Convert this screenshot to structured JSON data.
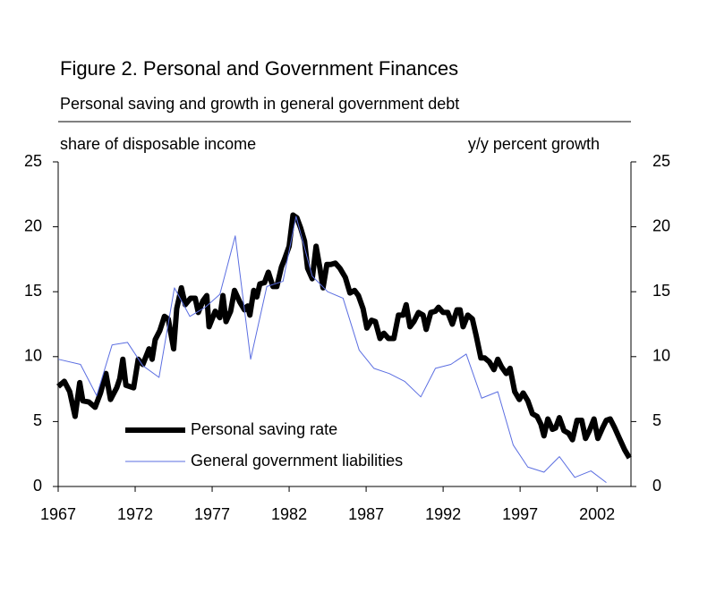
{
  "chart_data": {
    "type": "line",
    "title": "Figure 2. Personal and Government Finances",
    "subtitle": "Personal saving and growth in general government debt",
    "y_label": "share of disposable income",
    "y2_label": "y/y percent growth",
    "xlim": [
      1967,
      2004.2
    ],
    "xticks": [
      1967,
      1972,
      1977,
      1982,
      1987,
      1992,
      1997,
      2002
    ],
    "ylim": [
      0,
      25
    ],
    "yticks": [
      0,
      5,
      10,
      15,
      20,
      25
    ],
    "y2lim": [
      0,
      25
    ],
    "y2ticks": [
      0,
      5,
      10,
      15,
      20,
      25
    ],
    "legend": "lower left",
    "series": [
      {
        "name": "Personal saving rate",
        "color": "#000000",
        "x": [
          1967,
          1967.4,
          1967.75,
          1968.1,
          1968.4,
          1968.6,
          1969.0,
          1969.4,
          1969.75,
          1970.1,
          1970.4,
          1970.8,
          1971.0,
          1971.2,
          1971.4,
          1971.9,
          1972.2,
          1972.5,
          1972.9,
          1973.1,
          1973.3,
          1973.6,
          1973.9,
          1974.15,
          1974.5,
          1974.7,
          1975.0,
          1975.25,
          1975.6,
          1975.9,
          1976.1,
          1976.4,
          1976.65,
          1976.8,
          1977.2,
          1977.5,
          1977.7,
          1977.9,
          1978.2,
          1978.45,
          1978.8,
          1979.1,
          1979.3,
          1979.45,
          1979.7,
          1979.9,
          1980.1,
          1980.4,
          1980.65,
          1980.95,
          1981.2,
          1981.5,
          1981.7,
          1982.0,
          1982.25,
          1982.5,
          1982.75,
          1983.0,
          1983.2,
          1983.5,
          1983.75,
          1984.0,
          1984.2,
          1984.45,
          1984.7,
          1985.0,
          1985.3,
          1985.65,
          1985.95,
          1986.25,
          1986.5,
          1986.8,
          1987.05,
          1987.35,
          1987.6,
          1987.9,
          1988.15,
          1988.45,
          1988.8,
          1989.1,
          1989.4,
          1989.6,
          1989.85,
          1990.1,
          1990.4,
          1990.7,
          1990.9,
          1991.2,
          1991.5,
          1991.7,
          1992.0,
          1992.3,
          1992.6,
          1992.9,
          1993.1,
          1993.3,
          1993.6,
          1993.9,
          1994.15,
          1994.45,
          1994.7,
          1995.0,
          1995.3,
          1995.55,
          1995.8,
          1996.1,
          1996.35,
          1996.65,
          1996.95,
          1997.2,
          1997.5,
          1997.8,
          1998.1,
          1998.35,
          1998.55,
          1998.8,
          1999.1,
          1999.3,
          1999.55,
          1999.85,
          2000.15,
          2000.4,
          2000.7,
          2001.0,
          2001.25,
          2001.5,
          2001.8,
          2002.05,
          2002.35,
          2002.6,
          2002.85,
          2003.15,
          2003.45,
          2003.8,
          2004.1
        ],
        "values": [
          7.7,
          8.1,
          7.3,
          5.4,
          8.0,
          6.6,
          6.5,
          6.1,
          7.2,
          8.7,
          6.7,
          7.6,
          8.3,
          9.8,
          7.8,
          7.6,
          9.8,
          9.4,
          10.6,
          9.8,
          11.3,
          12.0,
          13.1,
          12.9,
          10.6,
          13.7,
          15.3,
          14.0,
          14.5,
          14.5,
          13.4,
          14.3,
          14.7,
          12.3,
          13.5,
          13.0,
          14.7,
          12.7,
          13.5,
          15.1,
          14.2,
          13.6,
          13.9,
          13.2,
          15.1,
          14.6,
          15.6,
          15.7,
          16.5,
          15.4,
          15.4,
          16.9,
          17.5,
          18.5,
          20.9,
          20.7,
          19.9,
          18.9,
          16.8,
          16.0,
          18.5,
          16.8,
          15.3,
          17.1,
          17.1,
          17.2,
          16.8,
          16.1,
          14.9,
          15.1,
          14.7,
          13.7,
          12.2,
          12.8,
          12.7,
          11.4,
          11.8,
          11.4,
          11.4,
          13.2,
          13.2,
          14.0,
          12.3,
          12.7,
          13.4,
          13.2,
          12.1,
          13.4,
          13.5,
          13.8,
          13.4,
          13.4,
          12.5,
          13.6,
          13.6,
          12.3,
          13.2,
          12.9,
          11.6,
          9.9,
          9.9,
          9.6,
          9.0,
          9.8,
          9.2,
          8.7,
          9.1,
          7.3,
          6.7,
          7.2,
          6.6,
          5.6,
          5.4,
          4.8,
          3.9,
          5.2,
          4.4,
          4.5,
          5.3,
          4.3,
          4.1,
          3.6,
          5.1,
          5.1,
          3.7,
          4.3,
          5.2,
          3.7,
          4.5,
          5.1,
          5.2,
          4.5,
          3.7,
          2.8,
          2.2
        ]
      },
      {
        "name": "General government liabilities",
        "color": "#5b6ee1",
        "axis": "y2",
        "x": [
          1967,
          1968.45,
          1969.5,
          1970.5,
          1971.5,
          1972.5,
          1973.55,
          1974.55,
          1975.55,
          1976.55,
          1977.5,
          1978.5,
          1979.5,
          1980.55,
          1981.6,
          1982.45,
          1983.5,
          1984.5,
          1985.5,
          1986.55,
          1987.5,
          1988.5,
          1989.5,
          1990.55,
          1991.5,
          1992.5,
          1993.5,
          1994.5,
          1995.55,
          1996.55,
          1997.5,
          1998.55,
          1999.55,
          2000.55,
          2001.6,
          2002.6
        ],
        "values": [
          9.8,
          9.4,
          7.0,
          10.9,
          11.1,
          9.3,
          8.4,
          15.3,
          13.1,
          13.8,
          14.8,
          19.3,
          9.8,
          15.4,
          15.8,
          20.8,
          16.2,
          15.0,
          14.5,
          10.5,
          9.1,
          8.7,
          8.1,
          6.9,
          9.1,
          9.4,
          10.2,
          6.8,
          7.3,
          3.2,
          1.5,
          1.1,
          2.3,
          0.7,
          1.2,
          0.3
        ]
      }
    ]
  }
}
